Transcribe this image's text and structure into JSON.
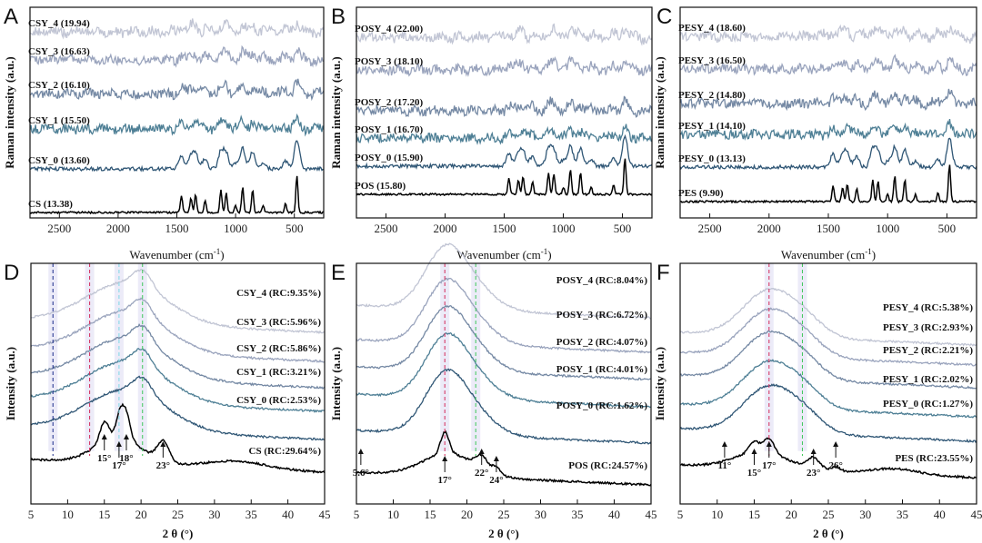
{
  "colors": [
    "#000000",
    "#2f5675",
    "#4e7f95",
    "#7589a4",
    "#9aa4bd",
    "#c1c5d4"
  ],
  "chart_data": [
    {
      "panel": "A",
      "type": "line",
      "ylabel": "Raman intensity (a.u.)",
      "xlabel_prefix": "Wavenumber (cm",
      "xlabel_sup": "-1",
      "xlabel_suffix": ")",
      "xlim": [
        2750,
        250
      ],
      "xticks": [
        2500,
        2000,
        1500,
        1000,
        500
      ],
      "series": [
        {
          "name": "CS (13.38)"
        },
        {
          "name": "CSY_0 (13.60)"
        },
        {
          "name": "CSY_1 (15.50)"
        },
        {
          "name": "CSY_2 (16.10)"
        },
        {
          "name": "CSY_3 (16.63)"
        },
        {
          "name": "CSY_4 (19.94)"
        }
      ]
    },
    {
      "panel": "B",
      "type": "line",
      "ylabel": "Raman intensity (a.u.)",
      "xlabel_prefix": "Wavenumber (cm",
      "xlabel_sup": "-1",
      "xlabel_suffix": ")",
      "xlim": [
        2750,
        250
      ],
      "xticks": [
        2500,
        2000,
        1500,
        1000,
        500
      ],
      "series": [
        {
          "name": "POS (15.80)"
        },
        {
          "name": "POSY_0 (15.90)"
        },
        {
          "name": "POSY_1 (16.70)"
        },
        {
          "name": "POSY_2 (17.20)"
        },
        {
          "name": "POSY_3 (18.10)"
        },
        {
          "name": "POSY_4 (22.00)"
        }
      ]
    },
    {
      "panel": "C",
      "type": "line",
      "ylabel": "Raman intensity (a.u.)",
      "xlabel_prefix": "Wavenumber (cm",
      "xlabel_sup": "-1",
      "xlabel_suffix": ")",
      "xlim": [
        2750,
        250
      ],
      "xticks": [
        2500,
        2000,
        1500,
        1000,
        500
      ],
      "series": [
        {
          "name": "PES (9.90)"
        },
        {
          "name": "PESY_0 (13.13)"
        },
        {
          "name": "PESY_1 (14.10)"
        },
        {
          "name": "PESY_2 (14.80)"
        },
        {
          "name": "PESY_3 (16.50)"
        },
        {
          "name": "PESY_4 (18.60)"
        }
      ]
    },
    {
      "panel": "D",
      "type": "line",
      "ylabel": "Intensity (a.u.)",
      "xlabel": "2 θ (°)",
      "xlim": [
        5,
        45
      ],
      "xticks": [
        5,
        10,
        15,
        20,
        25,
        30,
        35,
        40,
        45
      ],
      "series": [
        {
          "name": "CS (RC:29.64%)"
        },
        {
          "name": "CSY_0 (RC:2.53%)"
        },
        {
          "name": "CSY_1 (RC:3.21%)"
        },
        {
          "name": "CSY_2 (RC:5.86%)"
        },
        {
          "name": "CSY_3 (RC:5.96%)"
        },
        {
          "name": "CSY_4 (RC:9.35%)"
        }
      ],
      "peaks": [
        {
          "x": 15,
          "label": "15°"
        },
        {
          "x": 17,
          "label": "17°"
        },
        {
          "x": 18,
          "label": "18°"
        },
        {
          "x": 23,
          "label": "23°"
        }
      ],
      "ref_lines": [
        {
          "x": 8,
          "color": "#1a2a8a"
        },
        {
          "x": 13,
          "color": "#d42a5a"
        },
        {
          "x": 17,
          "color": "#7fd9e6"
        },
        {
          "x": 20.2,
          "color": "#3fc85a"
        }
      ]
    },
    {
      "panel": "E",
      "type": "line",
      "ylabel": "Intensity (a.u.)",
      "xlabel": "2 θ (°)",
      "xlim": [
        5,
        45
      ],
      "xticks": [
        5,
        10,
        15,
        20,
        25,
        30,
        35,
        40,
        45
      ],
      "series": [
        {
          "name": "POS (RC:24.57%)"
        },
        {
          "name": "POSY_0 (RC:1.62%)"
        },
        {
          "name": "POSY_1 (RC:4.01%)"
        },
        {
          "name": "POSY_2 (RC:4.07%)"
        },
        {
          "name": "POSY_3 (RC:6.72%)"
        },
        {
          "name": "POSY_4 (RC:8.04%)"
        }
      ],
      "peaks": [
        {
          "x": 5.6,
          "label": "5.6°"
        },
        {
          "x": 17,
          "label": "17°"
        },
        {
          "x": 22,
          "label": "22°"
        },
        {
          "x": 24,
          "label": "24°"
        }
      ],
      "ref_lines": [
        {
          "x": 17,
          "color": "#d42a5a"
        },
        {
          "x": 21.2,
          "color": "#3fc85a"
        }
      ]
    },
    {
      "panel": "F",
      "type": "line",
      "ylabel": "Intensity (a.u.)",
      "xlabel": "2 θ (°)",
      "xlim": [
        5,
        45
      ],
      "xticks": [
        5,
        10,
        15,
        20,
        25,
        30,
        35,
        40,
        45
      ],
      "series": [
        {
          "name": "PES (RC:23.55%)"
        },
        {
          "name": "PESY_0 (RC:1.27%)"
        },
        {
          "name": "PESY_1 (RC:2.02%)"
        },
        {
          "name": "PESY_2 (RC:2.21%)"
        },
        {
          "name": "PESY_3 (RC:2.93%)"
        },
        {
          "name": "PESY_4 (RC:5.38%)"
        }
      ],
      "peaks": [
        {
          "x": 11,
          "label": "11°"
        },
        {
          "x": 15,
          "label": "15°"
        },
        {
          "x": 17,
          "label": "17°"
        },
        {
          "x": 23,
          "label": "23°"
        },
        {
          "x": 26,
          "label": "26°"
        }
      ],
      "ref_lines": [
        {
          "x": 17,
          "color": "#d42a5a"
        },
        {
          "x": 21.5,
          "color": "#3fc85a"
        }
      ]
    }
  ]
}
